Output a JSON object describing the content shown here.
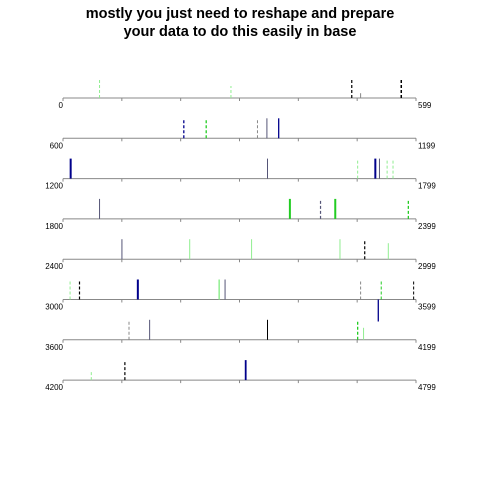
{
  "chart_data": {
    "type": "segment-strip",
    "title_lines": [
      "mostly you just need to reshape and prepare",
      "your data to do this easily in base"
    ],
    "xlabel": "",
    "ylabel": "",
    "panels": [
      {
        "start_label": "0",
        "end_label": "599",
        "range": [
          0,
          599
        ]
      },
      {
        "start_label": "600",
        "end_label": "1199",
        "range": [
          600,
          1199
        ]
      },
      {
        "start_label": "1200",
        "end_label": "1799",
        "range": [
          1200,
          1799
        ]
      },
      {
        "start_label": "1800",
        "end_label": "2399",
        "range": [
          1800,
          2399
        ]
      },
      {
        "start_label": "2400",
        "end_label": "2999",
        "range": [
          2400,
          2999
        ]
      },
      {
        "start_label": "3000",
        "end_label": "3599",
        "range": [
          3000,
          3599
        ]
      },
      {
        "start_label": "3600",
        "end_label": "4199",
        "range": [
          3600,
          4199
        ]
      },
      {
        "start_label": "4200",
        "end_label": "4799",
        "range": [
          4200,
          4799
        ]
      }
    ],
    "major_ticks_per_panel": 7,
    "colors": {
      "axis": "#888888",
      "black": "#000000",
      "navy": "#00008b",
      "slate": "#555577",
      "green": "#22cc22",
      "lightgreen": "#90ee90",
      "gray": "#888888"
    },
    "marks": [
      {
        "panel": 0,
        "x": 62,
        "h": 0.5,
        "color": "lightgreen",
        "dash": true,
        "w": 1
      },
      {
        "panel": 0,
        "x": 285,
        "h": 0.3,
        "color": "lightgreen",
        "dash": true,
        "w": 1
      },
      {
        "panel": 0,
        "x": 490,
        "h": 0.5,
        "color": "black",
        "dash": true,
        "w": 1.2
      },
      {
        "panel": 0,
        "x": 505,
        "h": 0.12,
        "color": "gray",
        "dash": false,
        "w": 1
      },
      {
        "panel": 0,
        "x": 574,
        "h": 0.5,
        "color": "black",
        "dash": true,
        "w": 1.5
      },
      {
        "panel": 1,
        "x": 805,
        "h": 0.5,
        "color": "navy",
        "dash": true,
        "w": 1.3
      },
      {
        "panel": 1,
        "x": 843,
        "h": 0.5,
        "color": "green",
        "dash": true,
        "w": 1.3
      },
      {
        "panel": 1,
        "x": 930,
        "h": 0.5,
        "color": "gray",
        "dash": true,
        "w": 1
      },
      {
        "panel": 1,
        "x": 946,
        "h": 0.5,
        "color": "slate",
        "dash": false,
        "w": 1
      },
      {
        "panel": 1,
        "x": 966,
        "h": 0.5,
        "color": "navy",
        "dash": false,
        "w": 1.3
      },
      {
        "panel": 2,
        "x": 1213,
        "h": 0.5,
        "color": "navy",
        "dash": false,
        "w": 2
      },
      {
        "panel": 2,
        "x": 1547,
        "h": 0.5,
        "color": "slate",
        "dash": false,
        "w": 1
      },
      {
        "panel": 2,
        "x": 1700,
        "h": 0.5,
        "color": "lightgreen",
        "dash": true,
        "w": 1
      },
      {
        "panel": 2,
        "x": 1730,
        "h": 0.5,
        "color": "navy",
        "dash": false,
        "w": 2
      },
      {
        "panel": 2,
        "x": 1737,
        "h": 0.5,
        "color": "slate",
        "dash": false,
        "w": 1
      },
      {
        "panel": 2,
        "x": 1750,
        "h": 0.5,
        "color": "lightgreen",
        "dash": true,
        "w": 1
      },
      {
        "panel": 2,
        "x": 1760,
        "h": 0.5,
        "color": "lightgreen",
        "dash": true,
        "w": 1
      },
      {
        "panel": 3,
        "x": 1862,
        "h": 0.5,
        "color": "slate",
        "dash": false,
        "w": 1
      },
      {
        "panel": 3,
        "x": 2185,
        "h": 0.5,
        "color": "green",
        "dash": false,
        "w": 2
      },
      {
        "panel": 3,
        "x": 2237,
        "h": 0.5,
        "color": "slate",
        "dash": true,
        "w": 1.2
      },
      {
        "panel": 3,
        "x": 2262,
        "h": 0.5,
        "color": "green",
        "dash": false,
        "w": 2
      },
      {
        "panel": 3,
        "x": 2386,
        "h": 0.5,
        "color": "green",
        "dash": true,
        "w": 1.3
      },
      {
        "panel": 4,
        "x": 2500,
        "h": 0.5,
        "color": "slate",
        "dash": false,
        "w": 1
      },
      {
        "panel": 4,
        "x": 2615,
        "h": 0.5,
        "color": "lightgreen",
        "dash": false,
        "w": 1
      },
      {
        "panel": 4,
        "x": 2720,
        "h": 0.5,
        "color": "lightgreen",
        "dash": false,
        "w": 1
      },
      {
        "panel": 4,
        "x": 2870,
        "h": 0.5,
        "color": "lightgreen",
        "dash": false,
        "w": 1
      },
      {
        "panel": 4,
        "x": 2912,
        "h": 0.5,
        "color": "black",
        "dash": true,
        "w": 1.2
      },
      {
        "panel": 4,
        "x": 2952,
        "h": 0.4,
        "color": "lightgreen",
        "dash": false,
        "w": 1
      },
      {
        "panel": 5,
        "x": 3012,
        "h": 0.5,
        "color": "lightgreen",
        "dash": true,
        "w": 1
      },
      {
        "panel": 5,
        "x": 3028,
        "h": 0.5,
        "color": "black",
        "dash": true,
        "w": 1.2
      },
      {
        "panel": 5,
        "x": 3127,
        "h": 0.5,
        "color": "navy",
        "dash": false,
        "w": 2
      },
      {
        "panel": 5,
        "x": 3265,
        "h": 0.5,
        "color": "lightgreen",
        "dash": false,
        "w": 1.5
      },
      {
        "panel": 5,
        "x": 3275,
        "h": 0.5,
        "color": "slate",
        "dash": false,
        "w": 1
      },
      {
        "panel": 5,
        "x": 3505,
        "h": 0.5,
        "color": "gray",
        "dash": true,
        "w": 1
      },
      {
        "panel": 5,
        "x": 3540,
        "h": 0.5,
        "color": "green",
        "dash": true,
        "w": 1
      },
      {
        "panel": 5,
        "x": 3595,
        "h": 0.5,
        "color": "black",
        "dash": true,
        "w": 1
      },
      {
        "panel": 5,
        "x": 3535,
        "h": -0.55,
        "color": "navy",
        "dash": false,
        "w": 1.3
      },
      {
        "panel": 6,
        "x": 3712,
        "h": 0.5,
        "color": "gray",
        "dash": true,
        "w": 1
      },
      {
        "panel": 6,
        "x": 3747,
        "h": 0.5,
        "color": "slate",
        "dash": false,
        "w": 1
      },
      {
        "panel": 6,
        "x": 3947,
        "h": 0.5,
        "color": "black",
        "dash": false,
        "w": 1
      },
      {
        "panel": 6,
        "x": 4100,
        "h": 0.5,
        "color": "green",
        "dash": true,
        "w": 1.3
      },
      {
        "panel": 6,
        "x": 4110,
        "h": 0.3,
        "color": "lightgreen",
        "dash": false,
        "w": 1
      },
      {
        "panel": 7,
        "x": 4248,
        "h": 0.2,
        "color": "lightgreen",
        "dash": true,
        "w": 1
      },
      {
        "panel": 7,
        "x": 4305,
        "h": 0.5,
        "color": "black",
        "dash": true,
        "w": 1.2
      },
      {
        "panel": 7,
        "x": 4510,
        "h": 0.5,
        "color": "navy",
        "dash": false,
        "w": 1.8
      }
    ]
  }
}
